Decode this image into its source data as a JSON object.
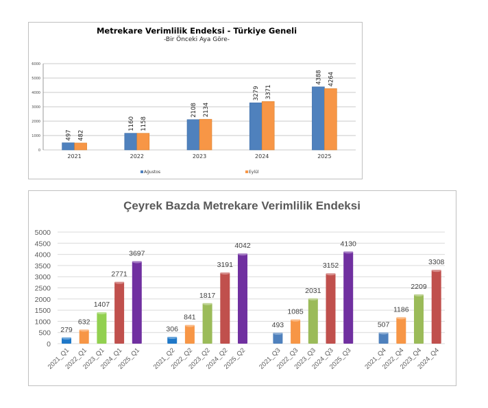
{
  "chart_data": [
    {
      "type": "bar",
      "title": "Metrekare Verimlilik Endeksi - Türkiye Geneli",
      "subtitle": "-Bir Önceki Aya Göre-",
      "categories": [
        "2021",
        "2022",
        "2023",
        "2024",
        "2025"
      ],
      "series": [
        {
          "name": "Ağustos",
          "color": "#4f81bd",
          "values": [
            497,
            1160,
            2108,
            3279,
            4388
          ]
        },
        {
          "name": "Eylül",
          "color": "#f79646",
          "values": [
            482,
            1158,
            2134,
            3371,
            4264
          ]
        }
      ],
      "yticks": [
        "0",
        "1000",
        "2000",
        "3000",
        "4000",
        "5000",
        "6000"
      ],
      "ylim": [
        0,
        6000
      ],
      "grid": true,
      "legend": "bottom"
    },
    {
      "type": "bar",
      "title": "Çeyrek Bazda Metrekare Verimlilik Endeksi",
      "categories": [
        "2021_Q1",
        "2022_Q1",
        "2023_Q1",
        "2024_Q1",
        "2025_Q1",
        "2021_Q2",
        "2022_Q2",
        "2023_Q2",
        "2024_Q2",
        "2025_Q2",
        "2021_Q3",
        "2022_Q3",
        "2023_Q3",
        "2024_Q3",
        "2025_Q3",
        "2021_Q4",
        "2022_Q4",
        "2023_Q4",
        "2024_Q4"
      ],
      "values": [
        279,
        632,
        1407,
        2771,
        3697,
        306,
        841,
        1817,
        3191,
        4042,
        493,
        1085,
        2031,
        3152,
        4130,
        507,
        1186,
        2209,
        3308
      ],
      "colors": [
        "#1f78c8",
        "#f79646",
        "#92d050",
        "#c0504d",
        "#7030a0",
        "#1f78c8",
        "#f79646",
        "#9bbb59",
        "#c0504d",
        "#7030a0",
        "#4f81bd",
        "#f79646",
        "#9bbb59",
        "#c0504d",
        "#7030a0",
        "#4f81bd",
        "#f79646",
        "#9bbb59",
        "#c0504d"
      ],
      "yticks": [
        "0",
        "500",
        "1000",
        "1500",
        "2000",
        "2500",
        "3000",
        "3500",
        "4000",
        "4500",
        "5000"
      ],
      "ylim": [
        0,
        5000
      ],
      "grid": true
    }
  ]
}
